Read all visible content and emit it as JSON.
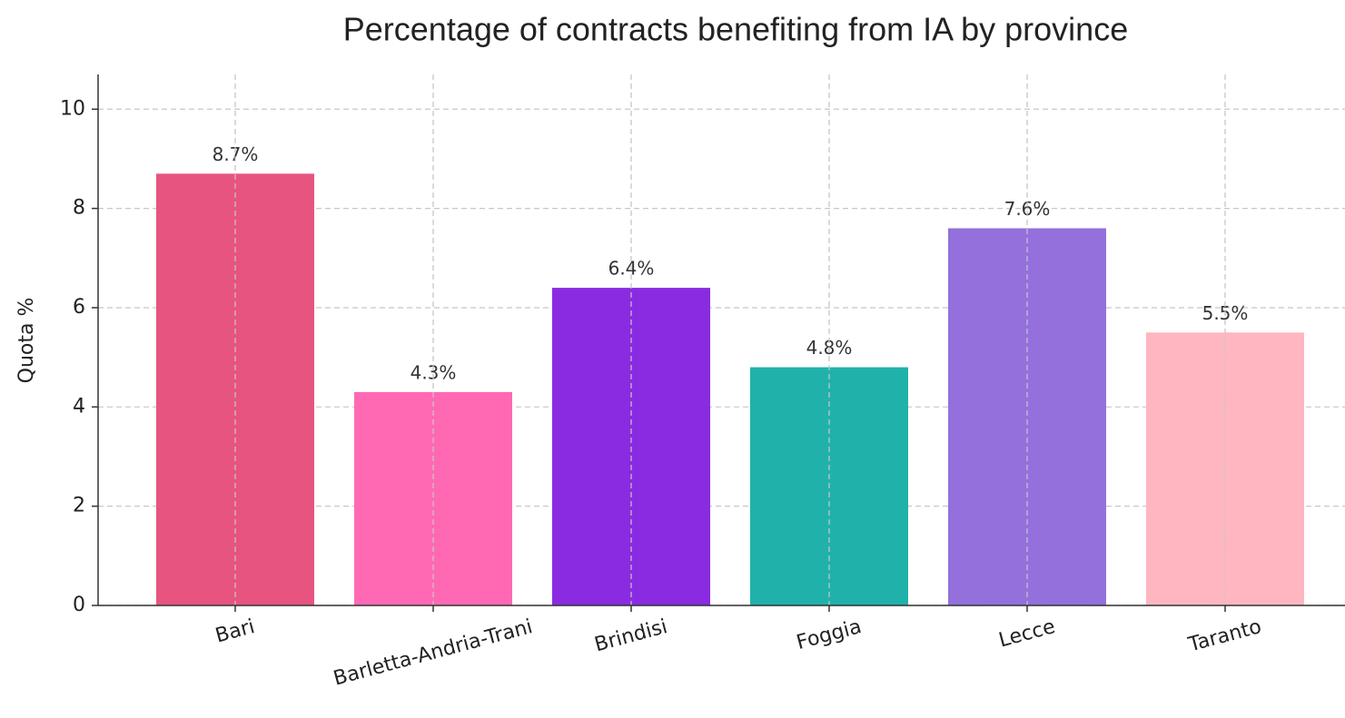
{
  "chart_data": {
    "type": "bar",
    "title": "Percentage of contracts benefiting from IA by province",
    "y_label": "Quota %",
    "categories": [
      "Bari",
      "Barletta-Andria-Trani",
      "Brindisi",
      "Foggia",
      "Lecce",
      "Taranto"
    ],
    "values": [
      8.7,
      4.3,
      6.4,
      4.8,
      7.6,
      5.5
    ],
    "value_labels": [
      "8.7%",
      "4.3%",
      "6.4%",
      "4.8%",
      "7.6%",
      "5.5%"
    ],
    "colors": [
      "#e75480",
      "#ff69b4",
      "#8a2be2",
      "#20b2aa",
      "#9370db",
      "#ffb6c1"
    ],
    "ylim": [
      0,
      10.7
    ],
    "yticks": [
      0,
      2,
      4,
      6,
      8,
      10
    ],
    "grid": true
  }
}
